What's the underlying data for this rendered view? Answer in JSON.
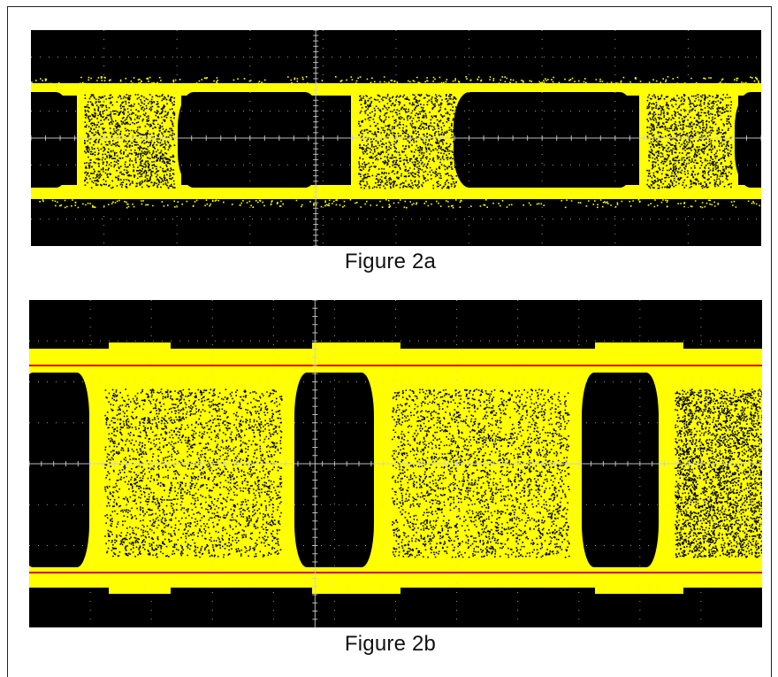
{
  "figures": [
    {
      "id": "2a",
      "caption": "Figure 2a",
      "colors": {
        "background": "#000000",
        "trace": "#ffff00",
        "grid": "#cfcfcf"
      }
    },
    {
      "id": "2b",
      "caption": "Figure 2b",
      "colors": {
        "background": "#000000",
        "trace": "#ffff00",
        "grid": "#cfcfcf",
        "reference_line": "#d40000"
      }
    }
  ]
}
